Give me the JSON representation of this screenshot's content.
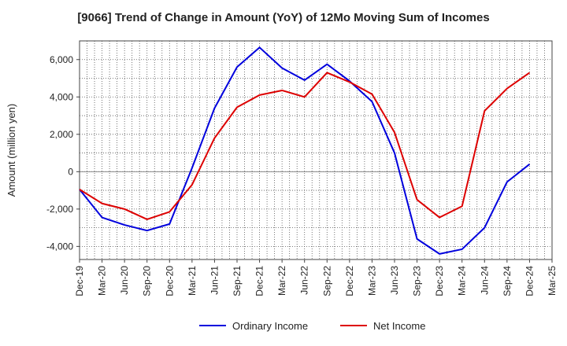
{
  "chart_data": {
    "type": "line",
    "title": "[9066]  Trend of Change in Amount (YoY) of 12Mo Moving Sum of Incomes",
    "xlabel": "",
    "ylabel": "Amount (million yen)",
    "ylim": [
      -4700,
      7000
    ],
    "yticks": [
      -4000,
      -2000,
      0,
      2000,
      4000,
      6000
    ],
    "ytick_labels": [
      "-4,000",
      "-2,000",
      "0",
      "2,000",
      "4,000",
      "6,000"
    ],
    "categories": [
      "Dec-19",
      "Mar-20",
      "Jun-20",
      "Sep-20",
      "Dec-20",
      "Mar-21",
      "Jun-21",
      "Sep-21",
      "Dec-21",
      "Mar-22",
      "Jun-22",
      "Sep-22",
      "Dec-22",
      "Mar-23",
      "Jun-23",
      "Sep-23",
      "Dec-23",
      "Mar-24",
      "Jun-24",
      "Sep-24",
      "Dec-24",
      "Mar-25"
    ],
    "grid": true,
    "legend_position": "bottom",
    "series": [
      {
        "name": "Ordinary Income",
        "color": "#0000dd",
        "values": [
          -950,
          -2450,
          -2850,
          -3150,
          -2800,
          200,
          3400,
          5600,
          6650,
          5550,
          4900,
          5750,
          4850,
          3750,
          1000,
          -3600,
          -4400,
          -4150,
          -3000,
          -550,
          400,
          null
        ]
      },
      {
        "name": "Net Income",
        "color": "#dd0000",
        "values": [
          -950,
          -1700,
          -2000,
          -2550,
          -2150,
          -700,
          1800,
          3450,
          4100,
          4350,
          4000,
          5300,
          4800,
          4150,
          2100,
          -1500,
          -2450,
          -1850,
          3250,
          4450,
          5300,
          null
        ]
      }
    ]
  }
}
